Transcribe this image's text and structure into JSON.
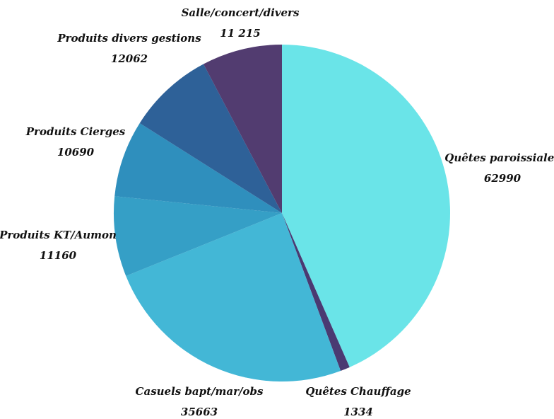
{
  "chart_data": {
    "type": "pie",
    "title": "",
    "slices": [
      {
        "label": "Quêtes paroissiales",
        "value_text": "62990",
        "value": 62990,
        "color": "#6ae4e8"
      },
      {
        "label": "Quêtes Chauffage",
        "value_text": "1334",
        "value": 1334,
        "color": "#4a3a72"
      },
      {
        "label": "Casuels bapt/mar/obs",
        "value_text": "35663",
        "value": 35663,
        "color": "#43b7d6"
      },
      {
        "label": "Produits KT/Aumon",
        "value_text": "11160",
        "value": 11160,
        "color": "#359fc6"
      },
      {
        "label": "Produits Cierges",
        "value_text": "10690",
        "value": 10690,
        "color": "#2f8fbd"
      },
      {
        "label": "Produits divers gestions",
        "value_text": "12062",
        "value": 12062,
        "color": "#2e6198"
      },
      {
        "label": "Salle/concert/divers",
        "value_text": "11 215",
        "value": 11215,
        "color": "#523c70"
      }
    ]
  }
}
